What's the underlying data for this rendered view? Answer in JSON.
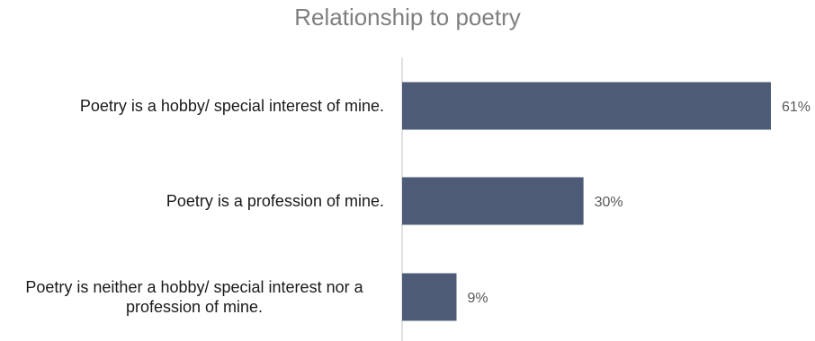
{
  "chart_data": {
    "type": "bar",
    "orientation": "horizontal",
    "title": "Relationship to poetry",
    "categories": [
      [
        "Poetry is a hobby/ special interest of mine."
      ],
      [
        "Poetry is a profession of mine."
      ],
      [
        "Poetry is neither a hobby/ special interest nor a",
        "profession of mine."
      ]
    ],
    "values": [
      61,
      30,
      9
    ],
    "value_labels": [
      "61%",
      "30%",
      "9%"
    ],
    "unit": "%",
    "xlim": [
      0,
      61
    ],
    "grid": false,
    "legend": "none",
    "bar_color": "#4d5b76",
    "axis_color": "#d9d9d9"
  }
}
